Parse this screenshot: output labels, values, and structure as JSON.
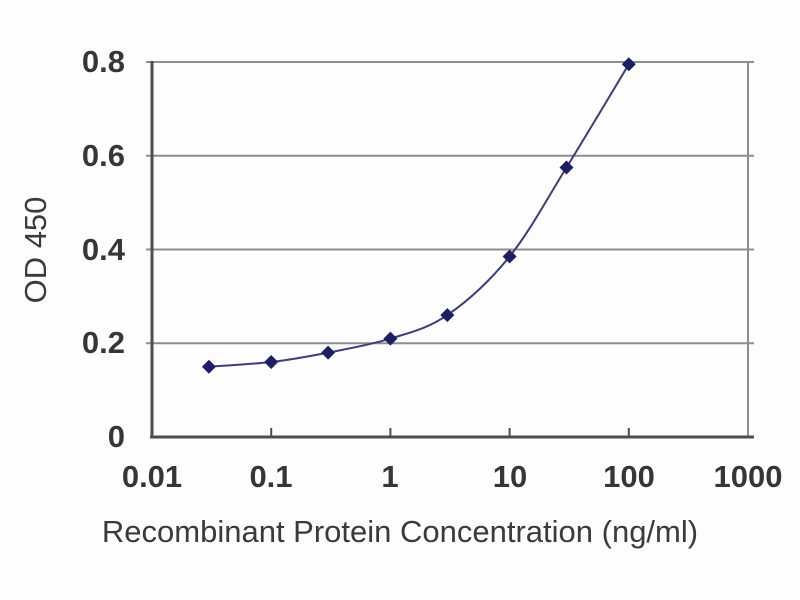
{
  "chart_data": {
    "type": "line",
    "title": "",
    "xlabel": "Recombinant Protein Concentration (ng/ml)",
    "ylabel": "OD 450",
    "x_scale": "log",
    "xlim": [
      0.01,
      1000
    ],
    "ylim": [
      0,
      0.8
    ],
    "x_tick_labels": [
      "0.01",
      "0.1",
      "1",
      "10",
      "100",
      "1000"
    ],
    "y_tick_labels": [
      "0",
      "0.2",
      "0.4",
      "0.6",
      "0.8"
    ],
    "y_gridline_values": [
      0.2,
      0.4,
      0.6,
      0.8
    ],
    "x_minor_tick_values": [
      0.1,
      1,
      10,
      100
    ],
    "grid": "horizontal-gridlines",
    "legend": "none",
    "marker": "diamond",
    "x": [
      0.03,
      0.1,
      0.3,
      1,
      3,
      10,
      30,
      100
    ],
    "values": [
      0.15,
      0.16,
      0.18,
      0.21,
      0.26,
      0.385,
      0.575,
      0.795
    ],
    "colors": {
      "line": "#3d3d7a",
      "marker": "#1e1e64",
      "grid": "#8e8e8e",
      "axis": "#4d4d4d",
      "text": "#333333",
      "background": "#fdfdfd"
    }
  }
}
